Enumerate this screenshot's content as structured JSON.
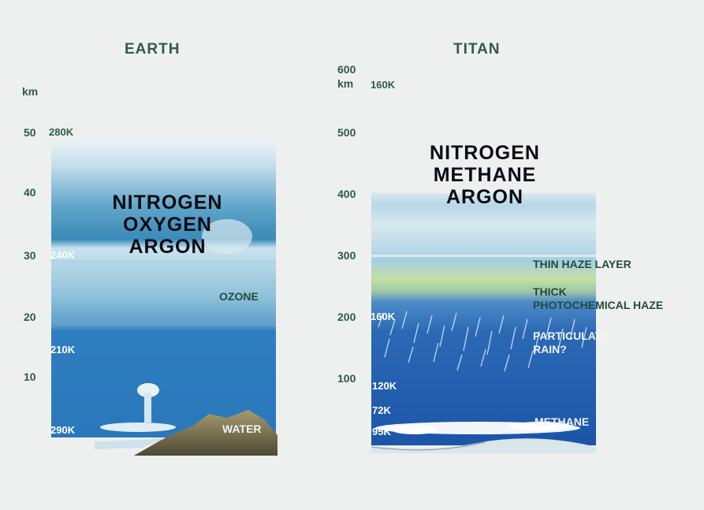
{
  "earth": {
    "title": "EARTH",
    "unit": "km",
    "axis_ticks": [
      "50",
      "40",
      "30",
      "20",
      "10"
    ],
    "temperatures": [
      "280K",
      "240K",
      "210K",
      "290K"
    ],
    "gases": [
      "NITROGEN",
      "OXYGEN",
      "ARGON"
    ],
    "labels": {
      "ozone": "OZONE",
      "water": "WATER"
    }
  },
  "titan": {
    "title": "TITAN",
    "unit": "km",
    "axis_ticks": [
      "600",
      "500",
      "400",
      "300",
      "200",
      "100"
    ],
    "temperatures": [
      "160K",
      "160K",
      "120K",
      "72K",
      "95K"
    ],
    "gases": [
      "NITROGEN",
      "METHANE",
      "ARGON"
    ],
    "labels": {
      "thin_haze": "THIN HAZE LAYER",
      "thick_haze_1": "THICK",
      "thick_haze_2": "PHOTOCHEMICAL HAZE",
      "particulate_1": "PARTICULATE",
      "particulate_2": "RAIN?",
      "methane": "METHANE"
    }
  },
  "colors": {
    "background": "#edf0ee",
    "text_green": "#2e5a48",
    "earth_sky_top": "#e4eff3",
    "earth_ocean": "#2f7ec0",
    "titan_deep": "#1d57a8",
    "haze_green": "#c8e6a0"
  }
}
